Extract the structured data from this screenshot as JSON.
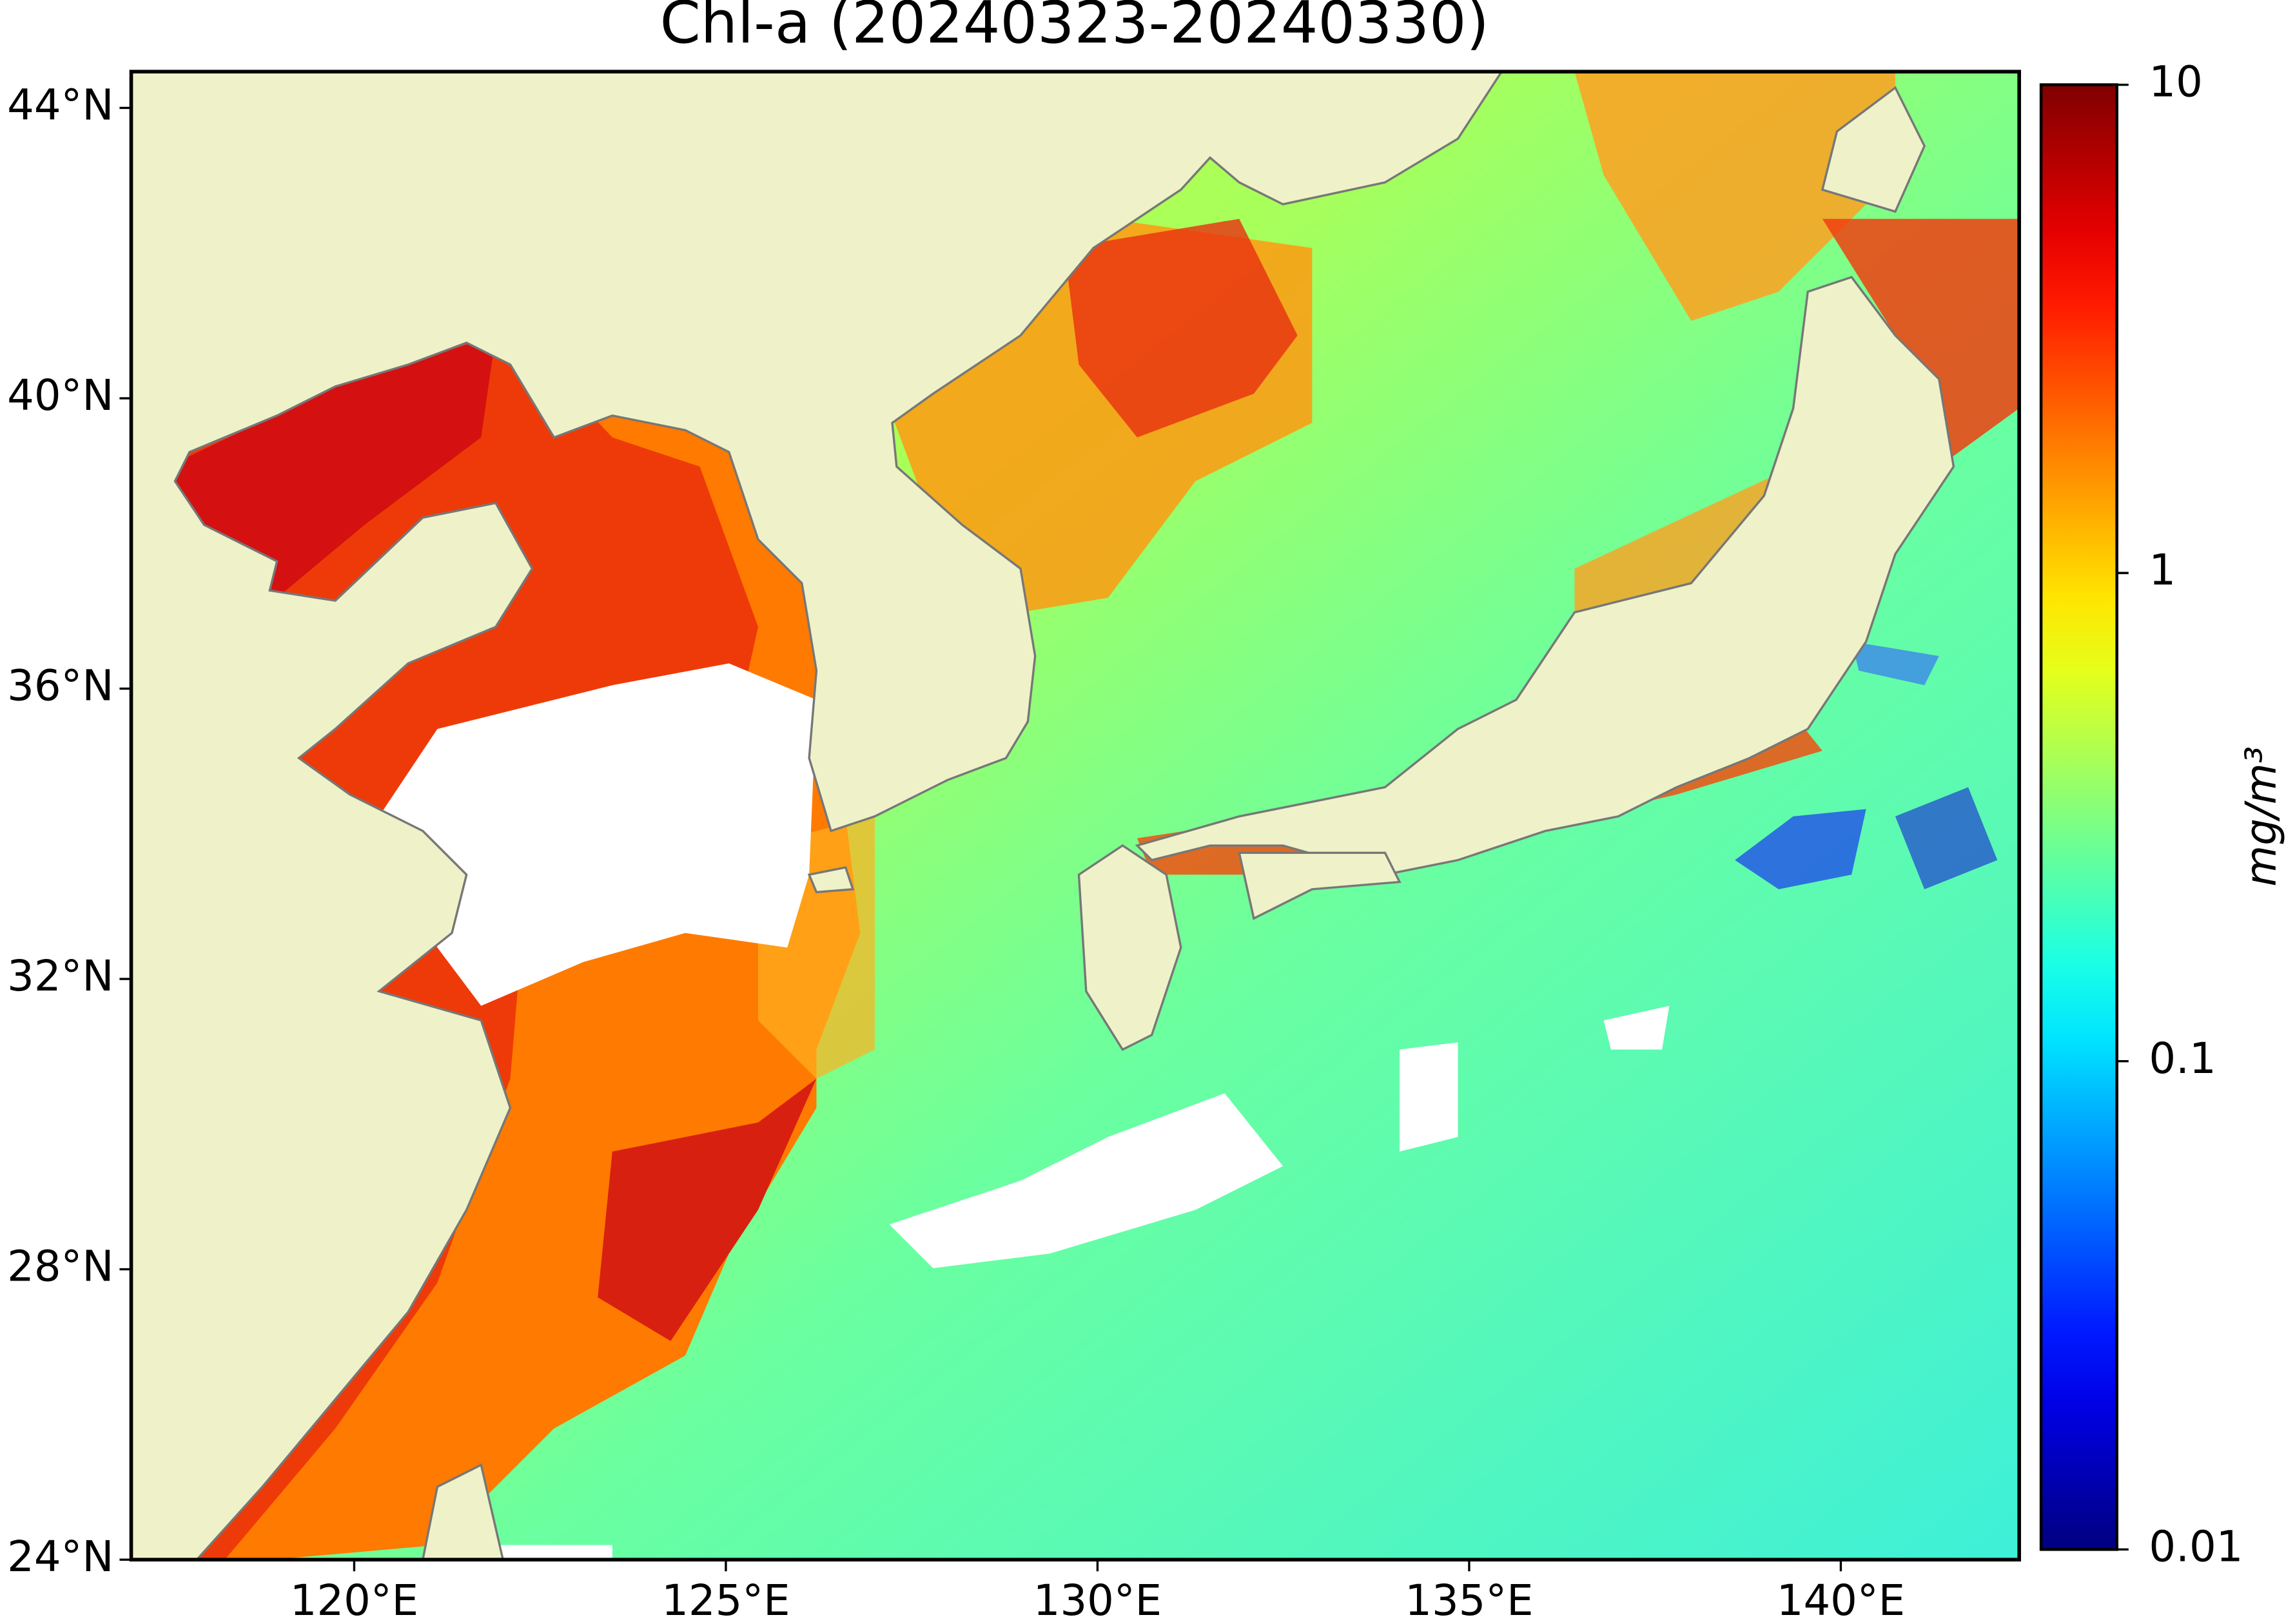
{
  "chart_data": {
    "type": "map",
    "title": "Chl-a (20240323-20240330)",
    "xlim": [
      117,
      142.4
    ],
    "ylim": [
      24,
      44.5
    ],
    "xticks": [
      {
        "value": 120,
        "label": "120°E"
      },
      {
        "value": 125,
        "label": "125°E"
      },
      {
        "value": 130,
        "label": "130°E"
      },
      {
        "value": 135,
        "label": "135°E"
      },
      {
        "value": 140,
        "label": "140°E"
      }
    ],
    "yticks": [
      {
        "value": 24,
        "label": "24°N"
      },
      {
        "value": 28,
        "label": "28°N"
      },
      {
        "value": 32,
        "label": "32°N"
      },
      {
        "value": 36,
        "label": "36°N"
      },
      {
        "value": 40,
        "label": "40°N"
      },
      {
        "value": 44,
        "label": "44°N"
      }
    ],
    "land_color": "#eff2c8",
    "colorbar": {
      "label": "mg/m³",
      "scale": "log",
      "lim": [
        0.01,
        10
      ],
      "ticks": [
        0.01,
        0.1,
        1,
        10
      ],
      "colormap": "jet"
    }
  }
}
